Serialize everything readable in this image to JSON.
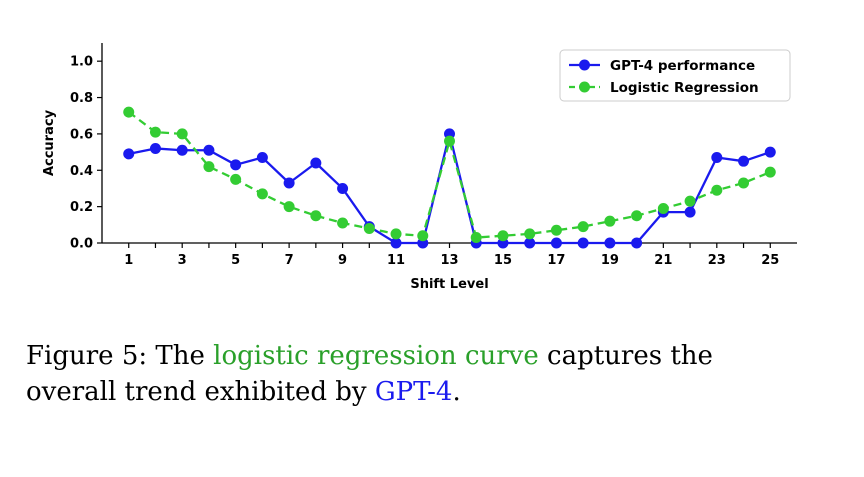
{
  "chart_data": {
    "type": "line",
    "xlabel": "Shift Level",
    "ylabel": "Accuracy",
    "xlim": [
      0,
      26
    ],
    "ylim": [
      0,
      1.1
    ],
    "x_ticks": [
      1,
      3,
      5,
      7,
      9,
      11,
      13,
      15,
      17,
      19,
      21,
      23,
      25
    ],
    "y_ticks": [
      0.0,
      0.2,
      0.4,
      0.6,
      0.8,
      1.0
    ],
    "grid": false,
    "legend_position": "top-right",
    "x": [
      1,
      2,
      3,
      4,
      5,
      6,
      7,
      8,
      9,
      10,
      11,
      12,
      13,
      14,
      15,
      16,
      17,
      18,
      19,
      20,
      21,
      22,
      23,
      24,
      25
    ],
    "series": [
      {
        "name": "GPT-4 performance",
        "color": "#1a1aee",
        "line_style": "solid",
        "values": [
          0.49,
          0.52,
          0.51,
          0.51,
          0.43,
          0.47,
          0.33,
          0.44,
          0.3,
          0.09,
          0.0,
          0.0,
          0.6,
          0.0,
          0.0,
          0.0,
          0.0,
          0.0,
          0.0,
          0.0,
          0.17,
          0.17,
          0.47,
          0.45,
          0.5
        ]
      },
      {
        "name": "Logistic Regression",
        "color": "#33cc33",
        "line_style": "dashed",
        "values": [
          0.72,
          0.61,
          0.6,
          0.42,
          0.35,
          0.27,
          0.2,
          0.15,
          0.11,
          0.08,
          0.05,
          0.04,
          0.56,
          0.03,
          0.04,
          0.05,
          0.07,
          0.09,
          0.12,
          0.15,
          0.19,
          0.23,
          0.29,
          0.33,
          0.39
        ]
      }
    ]
  },
  "caption": {
    "prefix": "Figure 5:  The ",
    "highlight_green": "logistic regression curve",
    "middle": " captures the overall trend exhibited by ",
    "highlight_blue": "GPT-4",
    "suffix": "."
  }
}
